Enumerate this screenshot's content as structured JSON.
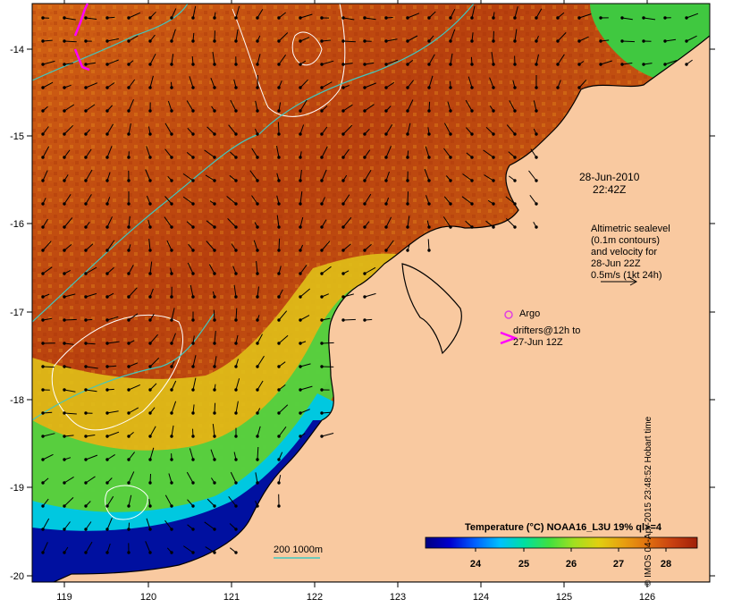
{
  "map": {
    "lon_ticks": [
      "119",
      "120",
      "121",
      "122",
      "123",
      "124",
      "125",
      "126"
    ],
    "lat_ticks": [
      "-14",
      "-15",
      "-16",
      "-17",
      "-18",
      "-19",
      "-20"
    ],
    "colors": {
      "land": "#f9c9a0",
      "coast": "#000000",
      "sealevel_contour": "#ffffff",
      "bathymetry_contour": "#40c8c0",
      "argo": "#e040e0",
      "drifter": "#ff00ff"
    }
  },
  "annotations": {
    "timestamp_date": "28-Jun-2010",
    "timestamp_time": "22:42Z",
    "altimetric_lines": [
      "Altimetric sealevel",
      "(0.1m contours)",
      "and velocity for",
      "28-Jun 22Z",
      "0.5m/s (1kt 24h)"
    ],
    "argo_label": "Argo",
    "drifters_lines": [
      "drifters@12h to",
      "27-Jun 12Z"
    ],
    "bathy_label": "200  1000m"
  },
  "colorbar": {
    "title": "Temperature (°C) NOAA16_L3U 19% ql>=4",
    "ticks": [
      "24",
      "25",
      "26",
      "27",
      "28"
    ],
    "stops": [
      "#000080",
      "#0000d0",
      "#0060ff",
      "#00c0ff",
      "#00e0a0",
      "#40e040",
      "#a0e020",
      "#e0d010",
      "#e8a010",
      "#e07010",
      "#c84010",
      "#a02008"
    ]
  },
  "stamp": "© IMOS 04-Apr-2015 23:48:52 Hobart time"
}
